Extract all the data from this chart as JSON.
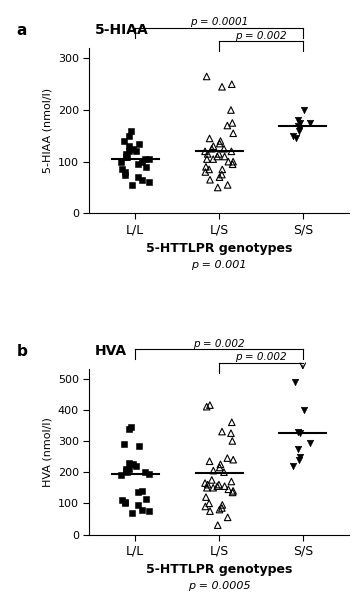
{
  "panel_a": {
    "title": "5-HIAA",
    "ylabel": "5-HIAA (nmol/l)",
    "xlabel": "5-HTTLPR genotypes",
    "poverall": "p = 0.001",
    "ylim": [
      0,
      320
    ],
    "yticks": [
      0,
      100,
      200,
      300
    ],
    "groups": [
      "L/L",
      "L/S",
      "S/S"
    ],
    "means": [
      105,
      120,
      170
    ],
    "ll_data": [
      55,
      60,
      65,
      70,
      75,
      80,
      85,
      90,
      95,
      100,
      100,
      105,
      105,
      110,
      110,
      115,
      120,
      120,
      125,
      130,
      135,
      140,
      150,
      160
    ],
    "ls_data": [
      50,
      55,
      65,
      70,
      75,
      80,
      85,
      85,
      90,
      95,
      100,
      100,
      105,
      105,
      110,
      110,
      115,
      115,
      120,
      120,
      125,
      125,
      130,
      135,
      140,
      145,
      155,
      170,
      175,
      200,
      245,
      250,
      265
    ],
    "ss_data": [
      145,
      150,
      160,
      165,
      170,
      175,
      175,
      180,
      200
    ],
    "sig_ll_ls": "p = 0.0001",
    "sig_ls_ss": "p = 0.002",
    "arrow_ls_ss": false
  },
  "panel_b": {
    "title": "HVA",
    "ylabel": "HVA (nmol/l)",
    "xlabel": "5-HTTLPR genotypes",
    "poverall": "p = 0.0005",
    "ylim": [
      0,
      530
    ],
    "yticks": [
      0,
      100,
      200,
      300,
      400,
      500
    ],
    "groups": [
      "L/L",
      "L/S",
      "S/S"
    ],
    "means": [
      195,
      197,
      325
    ],
    "ll_data": [
      70,
      75,
      80,
      95,
      100,
      105,
      110,
      115,
      135,
      140,
      190,
      195,
      200,
      200,
      205,
      210,
      210,
      220,
      225,
      230,
      285,
      290,
      340,
      345
    ],
    "ls_data": [
      30,
      55,
      75,
      80,
      85,
      90,
      95,
      100,
      120,
      135,
      140,
      145,
      150,
      150,
      155,
      155,
      160,
      160,
      165,
      170,
      175,
      200,
      205,
      215,
      225,
      235,
      240,
      245,
      300,
      325,
      330,
      360,
      410,
      415
    ],
    "ss_data": [
      220,
      240,
      250,
      275,
      295,
      325,
      330,
      400,
      490
    ],
    "sig_ll_ls": "p = 0.002",
    "sig_ls_ss": "p = 0.002",
    "arrow_ls_ss": true
  }
}
